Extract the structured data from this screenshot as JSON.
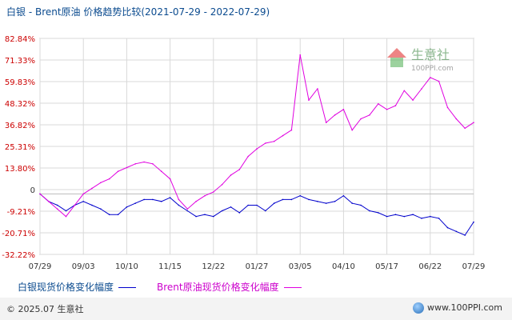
{
  "title": "白银 - Brent原油 价格趋势比较(2021-07-29 - 2022-07-29)",
  "watermark": {
    "name": "生意社",
    "url": "100PPI.com"
  },
  "footer": {
    "copyright": "© 2025.07 生意社",
    "website": "www.100PPI.com"
  },
  "colors": {
    "silver": "#0000cc",
    "brent": "#e000e0",
    "ytick": "#cc0000",
    "title": "#0b4b8f"
  },
  "chart_data": {
    "type": "line",
    "title": "白银 - Brent原油 价格趋势比较(2021-07-29 - 2022-07-29)",
    "xlabel": "",
    "ylabel": "",
    "ylim": [
      -32.22,
      82.84
    ],
    "grid": true,
    "legend_position": "bottom",
    "x_ticks": [
      "07/29",
      "09/03",
      "10/10",
      "11/15",
      "12/22",
      "01/27",
      "03/05",
      "04/10",
      "05/17",
      "06/22",
      "07/29"
    ],
    "y_ticks": [
      "82.84%",
      "71.33%",
      "59.83%",
      "48.32%",
      "36.82%",
      "25.31%",
      "13.80%",
      "0",
      "-9.21%",
      "-20.71%",
      "-32.22%"
    ],
    "series": [
      {
        "name": "白银现货价格变化幅度",
        "x": [
          "07/29",
          "08/05",
          "08/12",
          "08/19",
          "08/26",
          "09/03",
          "09/10",
          "09/17",
          "09/24",
          "10/01",
          "10/10",
          "10/17",
          "10/24",
          "10/31",
          "11/07",
          "11/15",
          "11/22",
          "11/29",
          "12/06",
          "12/13",
          "12/22",
          "12/29",
          "01/05",
          "01/12",
          "01/19",
          "01/27",
          "02/03",
          "02/10",
          "02/17",
          "02/24",
          "03/05",
          "03/12",
          "03/19",
          "03/26",
          "04/02",
          "04/10",
          "04/17",
          "04/24",
          "05/01",
          "05/08",
          "05/17",
          "05/24",
          "05/31",
          "06/07",
          "06/14",
          "06/22",
          "06/29",
          "07/06",
          "07/13",
          "07/20",
          "07/29"
        ],
        "values": [
          0,
          -4,
          -6,
          -9,
          -6,
          -4,
          -6,
          -8,
          -11,
          -11,
          -7,
          -5,
          -3,
          -3,
          -4,
          -2,
          -6,
          -9,
          -12,
          -11,
          -12,
          -9,
          -7,
          -10,
          -6,
          -6,
          -9,
          -5,
          -3,
          -3,
          -1,
          -3,
          -4,
          -5,
          -4,
          -1,
          -5,
          -6,
          -9,
          -10,
          -12,
          -11,
          -12,
          -11,
          -13,
          -12,
          -13,
          -18,
          -20,
          -22,
          -15
        ]
      },
      {
        "name": "Brent原油现货价格变化幅度",
        "x": [
          "07/29",
          "08/05",
          "08/12",
          "08/19",
          "08/26",
          "09/03",
          "09/10",
          "09/17",
          "09/24",
          "10/01",
          "10/10",
          "10/17",
          "10/24",
          "10/31",
          "11/07",
          "11/15",
          "11/22",
          "11/29",
          "12/06",
          "12/13",
          "12/22",
          "12/29",
          "01/05",
          "01/12",
          "01/19",
          "01/27",
          "02/03",
          "02/10",
          "02/17",
          "02/24",
          "03/05",
          "03/12",
          "03/19",
          "03/26",
          "04/02",
          "04/10",
          "04/17",
          "04/24",
          "05/01",
          "05/08",
          "05/17",
          "05/24",
          "05/31",
          "06/07",
          "06/14",
          "06/22",
          "06/29",
          "07/06",
          "07/13",
          "07/20",
          "07/29"
        ],
        "values": [
          0,
          -4,
          -8,
          -12,
          -6,
          0,
          3,
          6,
          8,
          12,
          14,
          16,
          17,
          16,
          12,
          8,
          -3,
          -8,
          -4,
          -1,
          1,
          5,
          10,
          13,
          20,
          24,
          27,
          28,
          31,
          34,
          74,
          50,
          56,
          38,
          42,
          45,
          34,
          40,
          42,
          48,
          45,
          47,
          55,
          50,
          56,
          62,
          60,
          46,
          40,
          35,
          38
        ]
      }
    ]
  }
}
